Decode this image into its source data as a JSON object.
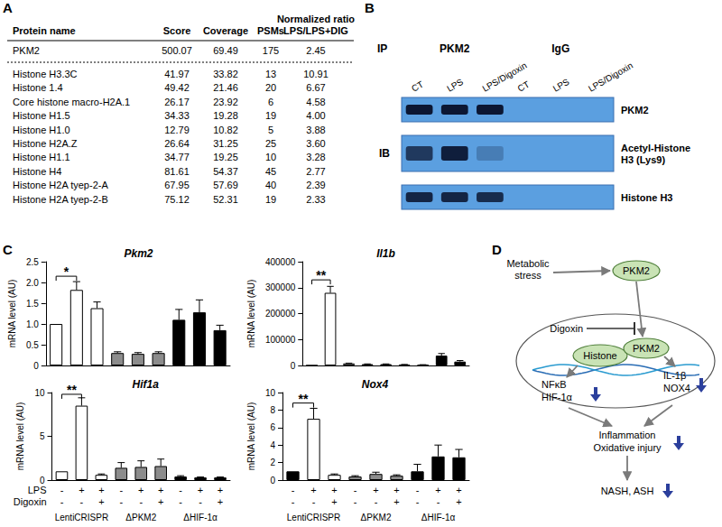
{
  "panel_labels": [
    "A",
    "B",
    "C",
    "D"
  ],
  "table": {
    "columns": [
      [
        "Protein name"
      ],
      [
        "Score"
      ],
      [
        "Coverage"
      ],
      [
        "PSMs"
      ],
      [
        "Normalized ratio",
        "LPS/LPS+DIG"
      ]
    ],
    "rows": [
      [
        "PKM2",
        "500.07",
        "69.49",
        "175",
        "2.45"
      ],
      [
        "Histone H3.3C",
        "41.97",
        "33.82",
        "13",
        "10.91"
      ],
      [
        "Histone 1.4",
        "49.42",
        "21.46",
        "20",
        "6.67"
      ],
      [
        "Core histone macro-H2A.1",
        "26.17",
        "23.92",
        "6",
        "4.58"
      ],
      [
        "Histone H1.5",
        "34.33",
        "19.28",
        "19",
        "4.00"
      ],
      [
        "Histone H1.0",
        "12.79",
        "10.82",
        "5",
        "3.88"
      ],
      [
        "Histone H2A.Z",
        "26.64",
        "31.25",
        "25",
        "3.60"
      ],
      [
        "Histone H1.1",
        "34.77",
        "19.25",
        "10",
        "3.28"
      ],
      [
        "Histone H4",
        "81.61",
        "54.37",
        "45",
        "2.77"
      ],
      [
        "Histone H2A tyep-2-A",
        "67.95",
        "57.69",
        "40",
        "2.39"
      ],
      [
        "Histone H2A tyep-2-B",
        "75.12",
        "52.31",
        "19",
        "2.33"
      ]
    ]
  },
  "blot": {
    "ip_label": "IP",
    "ib_label": "IB",
    "ip_groups": [
      {
        "label": "PKM2",
        "lanes": [
          "CT",
          "LPS",
          "LPS/Digoxin"
        ]
      },
      {
        "label": "IgG",
        "lanes": [
          "CT",
          "LPS",
          "LPS/Digoxin"
        ]
      }
    ],
    "rows": [
      {
        "label": [
          "PKM2"
        ],
        "intensity": [
          1,
          1,
          1,
          0,
          0,
          0
        ]
      },
      {
        "label": [
          "Acetyl-Histone",
          "H3 (Lys9)"
        ],
        "intensity": [
          0.75,
          0.95,
          0.25,
          0,
          0,
          0
        ]
      },
      {
        "label": [
          "Histone H3"
        ],
        "intensity": [
          0.9,
          0.9,
          0.85,
          0,
          0,
          0
        ]
      }
    ]
  },
  "chart_data": [
    {
      "type": "bar",
      "title": "Pkm2",
      "y_label": "mRNA level (AU)",
      "values": [
        1.0,
        1.82,
        1.38,
        0.3,
        0.28,
        0.3,
        1.1,
        1.28,
        0.85
      ],
      "errors": [
        0,
        0.2,
        0.15,
        0.03,
        0.03,
        0.03,
        0.25,
        0.3,
        0.12
      ],
      "colors": [
        "#ffffff",
        "#ffffff",
        "#ffffff",
        "#8c8c8c",
        "#8c8c8c",
        "#8c8c8c",
        "#000000",
        "#000000",
        "#000000"
      ],
      "ylim": [
        0,
        2.5
      ],
      "yticks": [
        0,
        0.5,
        {
          "value": 1,
          "label": "1.0"
        },
        1.5,
        {
          "value": 2,
          "label": "2.0"
        },
        2.5
      ],
      "significance": {
        "from": 0,
        "to": 1,
        "label": "*",
        "y": 2.15
      },
      "grid": false,
      "tick_labels": "y"
    },
    {
      "type": "bar",
      "title": "Il1b",
      "y_label": "mRNA level (AU)",
      "values": [
        1,
        280000,
        8000,
        5000,
        5000,
        3000,
        2000,
        38000,
        15000
      ],
      "errors": [
        0,
        25000,
        1000,
        1000,
        1000,
        1000,
        1000,
        8000,
        4000
      ],
      "colors": [
        "#ffffff",
        "#ffffff",
        "#ffffff",
        "#8c8c8c",
        "#8c8c8c",
        "#8c8c8c",
        "#000000",
        "#000000",
        "#000000"
      ],
      "ylim": [
        0,
        400000
      ],
      "yticks": [
        0,
        100000,
        200000,
        300000,
        400000
      ],
      "significance": {
        "from": 0,
        "to": 1,
        "label": "**",
        "y": 330000
      },
      "grid": false,
      "tick_labels": "y"
    },
    {
      "type": "bar",
      "title": "Hif1a",
      "y_label": "mRNA level (AU)",
      "values": [
        1,
        8.5,
        0.6,
        1.4,
        1.5,
        1.6,
        0.4,
        0.3,
        0.3
      ],
      "errors": [
        0,
        0.9,
        0.1,
        0.6,
        0.7,
        0.8,
        0.1,
        0.05,
        0.05
      ],
      "colors": [
        "#ffffff",
        "#ffffff",
        "#ffffff",
        "#8c8c8c",
        "#8c8c8c",
        "#8c8c8c",
        "#000000",
        "#000000",
        "#000000"
      ],
      "ylim": [
        0,
        10
      ],
      "yticks": [
        0,
        5,
        10
      ],
      "significance": {
        "from": 0,
        "to": 1,
        "label": "**",
        "y": 9.8
      },
      "x_rows": [
        {
          "label": "LPS",
          "values": [
            "-",
            "+",
            "+",
            "-",
            "+",
            "+",
            "-",
            "+",
            "+"
          ]
        },
        {
          "label": "Digoxin",
          "values": [
            "-",
            "-",
            "+",
            "-",
            "-",
            "+",
            "-",
            "-",
            "+"
          ]
        }
      ],
      "groups": [
        "LentiCRISPR",
        "ΔPKM2",
        "ΔHIF-1α"
      ],
      "grid": false
    },
    {
      "type": "bar",
      "title": "Nox4",
      "y_label": "mRNA level (AU)",
      "values": [
        1,
        7.0,
        0.6,
        0.4,
        0.7,
        0.5,
        1.0,
        2.7,
        2.6
      ],
      "errors": [
        0,
        1.2,
        0.1,
        0.1,
        0.2,
        0.1,
        0.8,
        1.3,
        0.9
      ],
      "colors": [
        "#000000",
        "#ffffff",
        "#ffffff",
        "#8c8c8c",
        "#8c8c8c",
        "#8c8c8c",
        "#000000",
        "#000000",
        "#000000"
      ],
      "ylim": [
        0,
        10
      ],
      "yticks": [
        0,
        2,
        4,
        6,
        8,
        10
      ],
      "significance": {
        "from": 0,
        "to": 1,
        "label": "**",
        "y": 8.8
      },
      "x_rows": [
        {
          "values": [
            "-",
            "+",
            "+",
            "-",
            "+",
            "+",
            "-",
            "+",
            "+"
          ]
        },
        {
          "values": [
            "-",
            "-",
            "+",
            "-",
            "-",
            "+",
            "-",
            "-",
            "+"
          ]
        }
      ],
      "groups": [
        "LentiCRISPR",
        "ΔPKM2",
        "ΔHIF-1α"
      ],
      "grid": false
    }
  ],
  "diagram": {
    "stress": [
      "Metabolic",
      "stress"
    ],
    "cytoplasm_protein": "PKM2",
    "inhibitor": "Digoxin",
    "nuclear": [
      "Histone",
      "PKM2"
    ],
    "targets_left": [
      "NFκB",
      "HIF-1α"
    ],
    "targets_right": [
      "IL-1β",
      "NOX4"
    ],
    "outcomes": [
      "Inflammation",
      "Oxidative injury"
    ],
    "disease": "NASH, ASH"
  }
}
